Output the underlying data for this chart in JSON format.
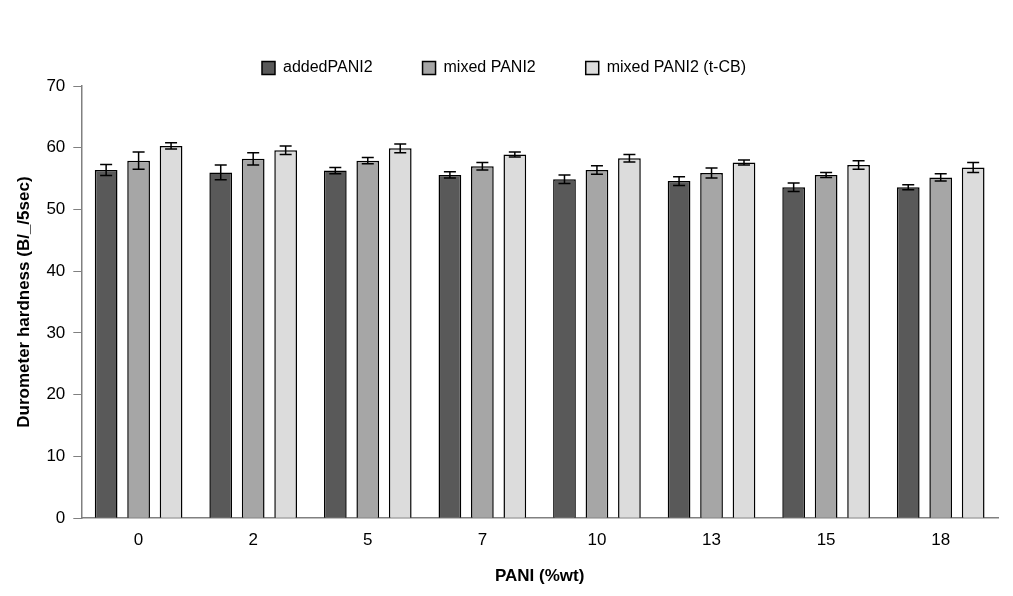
{
  "chart_data": {
    "type": "bar",
    "xlabel": "PANI (%wt)",
    "ylabel": "Durometer hardness (B/_/5sec)",
    "categories": [
      "0",
      "2",
      "5",
      "7",
      "10",
      "13",
      "15",
      "18"
    ],
    "series": [
      {
        "name": "addedPANI2",
        "color": "#595959",
        "values": [
          56.4,
          56.0,
          56.3,
          55.6,
          54.9,
          54.6,
          53.6,
          53.6
        ],
        "errors": [
          0.9,
          1.2,
          0.5,
          0.5,
          0.7,
          0.7,
          0.7,
          0.4
        ]
      },
      {
        "name": "mixed PANI2",
        "color": "#a6a6a6",
        "values": [
          57.9,
          58.2,
          57.9,
          57.0,
          56.4,
          55.9,
          55.6,
          55.2
        ],
        "errors": [
          1.4,
          1.0,
          0.5,
          0.6,
          0.7,
          0.8,
          0.4,
          0.6
        ]
      },
      {
        "name": "mixed PANI2 (t-CB)",
        "color": "#dcdcdc",
        "values": [
          60.3,
          59.6,
          59.9,
          58.9,
          58.3,
          57.6,
          57.2,
          56.8
        ],
        "errors": [
          0.5,
          0.7,
          0.7,
          0.4,
          0.6,
          0.4,
          0.7,
          0.8
        ]
      }
    ],
    "ylim": [
      0,
      70
    ],
    "yticks": [
      0,
      10,
      20,
      30,
      40,
      50,
      60,
      70
    ],
    "grid": false,
    "legend": "top"
  }
}
